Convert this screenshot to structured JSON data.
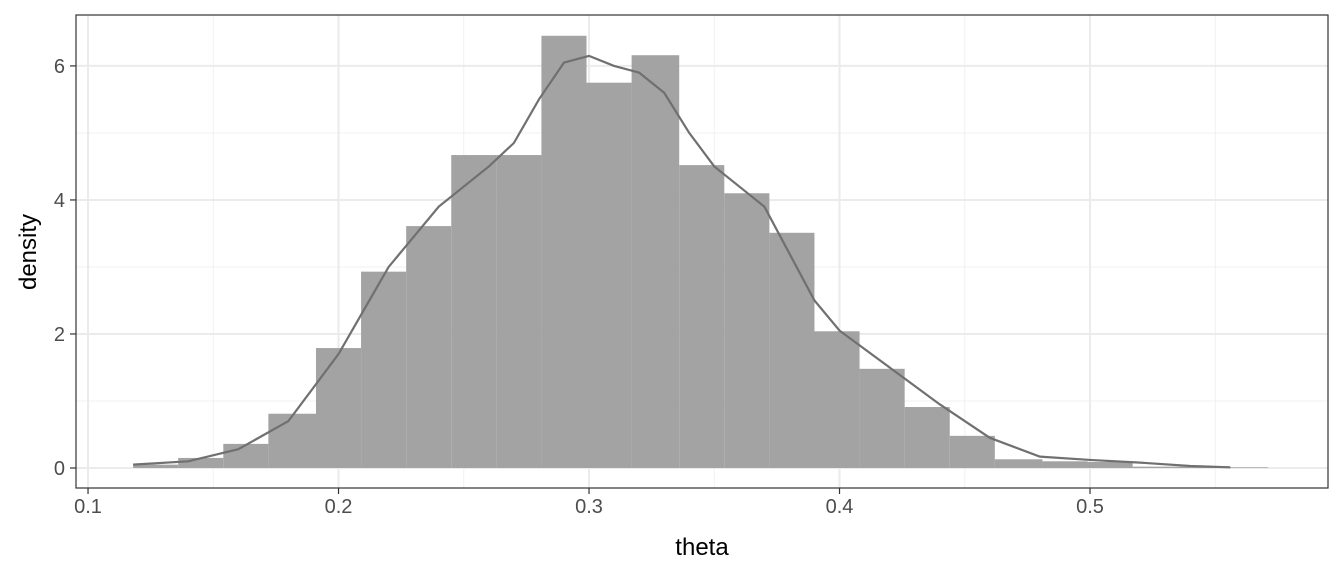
{
  "chart_data": {
    "type": "histogram",
    "x_label": "theta",
    "y_label": "density",
    "bins": [
      0.118,
      0.136,
      0.154,
      0.172,
      0.191,
      0.209,
      0.227,
      0.245,
      0.263,
      0.281,
      0.299,
      0.317,
      0.336,
      0.354,
      0.372,
      0.39,
      0.408,
      0.426,
      0.444,
      0.462,
      0.481,
      0.499,
      0.517,
      0.535,
      0.553,
      0.571
    ],
    "values": [
      0.05,
      0.15,
      0.36,
      0.81,
      1.79,
      2.93,
      3.61,
      4.67,
      4.67,
      6.45,
      5.75,
      6.16,
      4.52,
      4.1,
      3.51,
      2.04,
      1.48,
      0.91,
      0.48,
      0.13,
      0.1,
      0.09,
      0.02,
      0.02,
      0.01
    ],
    "color": "#a3a3a3",
    "density": {
      "color": "#707070",
      "x": [
        0.118,
        0.14,
        0.16,
        0.18,
        0.2,
        0.22,
        0.24,
        0.26,
        0.27,
        0.28,
        0.29,
        0.3,
        0.31,
        0.32,
        0.33,
        0.34,
        0.35,
        0.36,
        0.37,
        0.38,
        0.39,
        0.4,
        0.42,
        0.44,
        0.46,
        0.48,
        0.5,
        0.52,
        0.54,
        0.556
      ],
      "y": [
        0.05,
        0.1,
        0.28,
        0.7,
        1.7,
        3.0,
        3.9,
        4.5,
        4.85,
        5.5,
        6.05,
        6.15,
        6.0,
        5.9,
        5.6,
        5.0,
        4.5,
        4.2,
        3.9,
        3.2,
        2.5,
        2.05,
        1.5,
        0.95,
        0.45,
        0.17,
        0.12,
        0.08,
        0.03,
        0.01
      ]
    },
    "xlim": [
      0.0952,
      0.595
    ],
    "ylim": [
      -0.2985,
      6.76
    ],
    "xticks": [
      0.1,
      0.2,
      0.3,
      0.4,
      0.5
    ],
    "yticks": [
      0,
      2,
      4,
      6
    ],
    "grid": true,
    "minor_grid": true
  }
}
